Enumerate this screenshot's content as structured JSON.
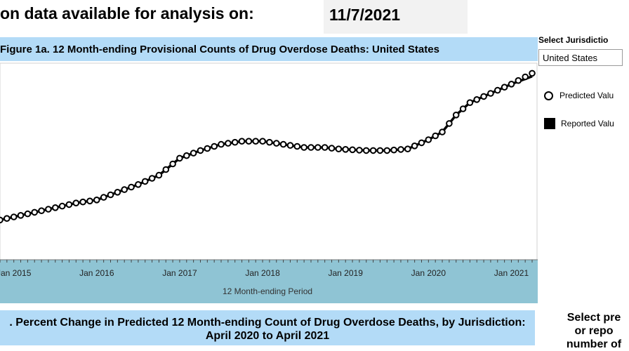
{
  "header": {
    "headline": "on data available for analysis on:",
    "date": "11/7/2021"
  },
  "figure1": {
    "title": "Figure 1a. 12 Month-ending Provisional Counts of Drug Overdose Deaths: United States"
  },
  "sidebar": {
    "select_label": "Select Jurisdictio",
    "select_value": "United States",
    "legend_predicted": "Predicted Valu",
    "legend_reported": "Reported Valu"
  },
  "figure2": {
    "title_line1": ". Percent Change in Predicted 12 Month-ending Count of Drug Overdose Deaths, by Jurisdiction:",
    "title_line2": "April 2020 to April 2021"
  },
  "right_panel": {
    "text": "Select pre\nor repo\nnumber of"
  },
  "colors": {
    "title_band": "#b3dbf7",
    "axis_band": "#8fc4d4",
    "series": "#000000"
  },
  "chart_data": {
    "type": "line",
    "title": "Figure 1a. 12 Month-ending Provisional Counts of Drug Overdose Deaths: United States",
    "xlabel": "12 Month-ending Period",
    "ylabel": "",
    "x_ticks": [
      "Jan 2015",
      "Jan 2016",
      "Jan 2017",
      "Jan 2018",
      "Jan 2019",
      "Jan 2020",
      "Jan 2021"
    ],
    "x_domain": [
      "2014-11",
      "2021-04"
    ],
    "y_domain": [
      0,
      100
    ],
    "legend_position": "right",
    "grid": false,
    "series": [
      {
        "name": "Predicted Valu",
        "marker": "open-circle",
        "points": [
          [
            "2014-11",
            3.0
          ],
          [
            "2015-01",
            5.0
          ],
          [
            "2015-04",
            8.0
          ],
          [
            "2015-07",
            11.0
          ],
          [
            "2015-10",
            14.0
          ],
          [
            "2016-01",
            16.0
          ],
          [
            "2016-04",
            21.0
          ],
          [
            "2016-07",
            26.0
          ],
          [
            "2016-10",
            32.0
          ],
          [
            "2017-01",
            43.0
          ],
          [
            "2017-04",
            48.0
          ],
          [
            "2017-07",
            52.0
          ],
          [
            "2017-10",
            54.0
          ],
          [
            "2018-01",
            54.0
          ],
          [
            "2018-04",
            52.0
          ],
          [
            "2018-07",
            50.0
          ],
          [
            "2018-10",
            50.0
          ],
          [
            "2018-12",
            49.0
          ],
          [
            "2019-04",
            48.0
          ],
          [
            "2019-07",
            48.0
          ],
          [
            "2019-10",
            49.0
          ],
          [
            "2020-01",
            55.0
          ],
          [
            "2020-03",
            60.0
          ],
          [
            "2020-05",
            71.0
          ],
          [
            "2020-07",
            79.0
          ],
          [
            "2020-10",
            85.0
          ],
          [
            "2021-01",
            91.0
          ],
          [
            "2021-04",
            98.0
          ]
        ]
      },
      {
        "name": "Reported Valu",
        "marker": "line",
        "points": [
          [
            "2014-11",
            3.0
          ],
          [
            "2015-01",
            5.0
          ],
          [
            "2015-04",
            8.0
          ],
          [
            "2015-07",
            11.0
          ],
          [
            "2015-10",
            14.0
          ],
          [
            "2016-01",
            16.0
          ],
          [
            "2016-04",
            21.0
          ],
          [
            "2016-07",
            26.0
          ],
          [
            "2016-10",
            32.0
          ],
          [
            "2017-01",
            43.0
          ],
          [
            "2017-04",
            48.0
          ],
          [
            "2017-07",
            52.0
          ],
          [
            "2017-10",
            54.0
          ],
          [
            "2018-01",
            54.0
          ],
          [
            "2018-04",
            52.0
          ],
          [
            "2018-07",
            50.0
          ],
          [
            "2018-10",
            50.0
          ],
          [
            "2018-12",
            49.0
          ],
          [
            "2019-04",
            48.0
          ],
          [
            "2019-07",
            48.0
          ],
          [
            "2019-10",
            49.0
          ],
          [
            "2020-01",
            55.0
          ],
          [
            "2020-03",
            60.0
          ],
          [
            "2020-05",
            71.0
          ],
          [
            "2020-07",
            79.0
          ],
          [
            "2020-10",
            85.0
          ],
          [
            "2021-01",
            91.0
          ],
          [
            "2021-04",
            96.0
          ]
        ]
      }
    ]
  }
}
